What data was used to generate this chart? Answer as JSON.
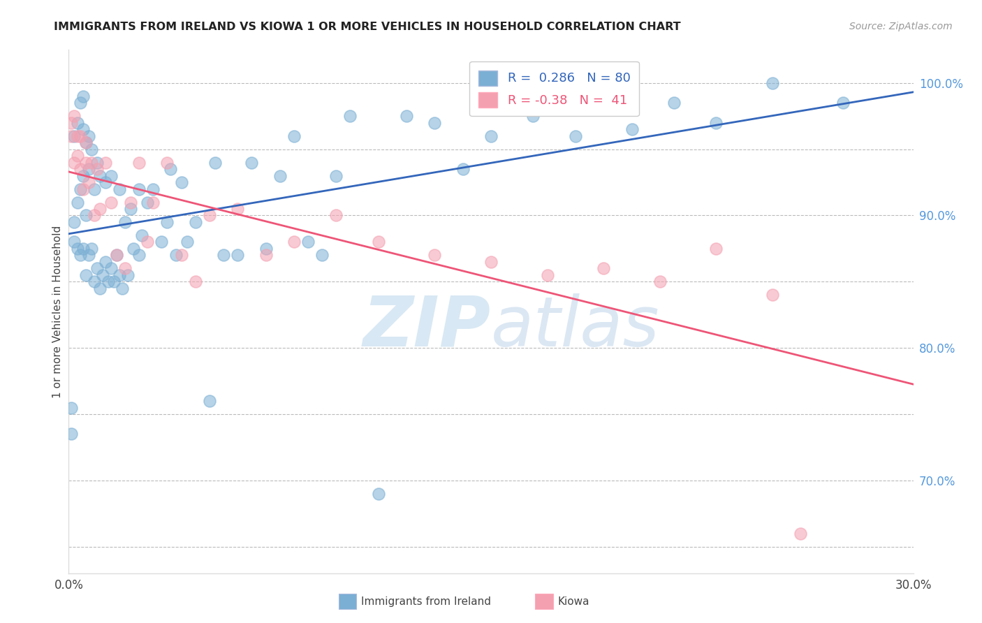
{
  "title": "IMMIGRANTS FROM IRELAND VS KIOWA 1 OR MORE VEHICLES IN HOUSEHOLD CORRELATION CHART",
  "source_text": "Source: ZipAtlas.com",
  "ylabel": "1 or more Vehicles in Household",
  "xmin": 0.0,
  "xmax": 0.3,
  "ymin": 0.63,
  "ymax": 1.025,
  "blue_R": 0.286,
  "blue_N": 80,
  "pink_R": -0.38,
  "pink_N": 41,
  "blue_color": "#7BAFD4",
  "pink_color": "#F4A0B0",
  "blue_line_color": "#3366BB",
  "pink_line_color": "#EE5577",
  "watermark_zip": "ZIP",
  "watermark_atlas": "atlas",
  "xticks": [
    0.0,
    0.05,
    0.1,
    0.15,
    0.2,
    0.25,
    0.3
  ],
  "xtick_labels": [
    "0.0%",
    "",
    "",
    "",
    "",
    "",
    "30.0%"
  ],
  "ytick_positions": [
    0.65,
    0.7,
    0.75,
    0.8,
    0.85,
    0.9,
    0.95,
    1.0
  ],
  "ytick_labels": [
    "",
    "70.0%",
    "",
    "80.0%",
    "",
    "90.0%",
    "",
    "100.0%"
  ],
  "blue_x": [
    0.001,
    0.001,
    0.002,
    0.002,
    0.002,
    0.003,
    0.003,
    0.003,
    0.004,
    0.004,
    0.004,
    0.005,
    0.005,
    0.005,
    0.005,
    0.006,
    0.006,
    0.006,
    0.007,
    0.007,
    0.007,
    0.008,
    0.008,
    0.009,
    0.009,
    0.01,
    0.01,
    0.011,
    0.011,
    0.012,
    0.013,
    0.013,
    0.014,
    0.015,
    0.015,
    0.016,
    0.017,
    0.018,
    0.018,
    0.019,
    0.02,
    0.021,
    0.022,
    0.023,
    0.025,
    0.025,
    0.026,
    0.028,
    0.03,
    0.033,
    0.035,
    0.036,
    0.038,
    0.04,
    0.042,
    0.045,
    0.05,
    0.052,
    0.055,
    0.06,
    0.065,
    0.07,
    0.075,
    0.08,
    0.085,
    0.09,
    0.095,
    0.1,
    0.11,
    0.12,
    0.13,
    0.14,
    0.15,
    0.165,
    0.18,
    0.2,
    0.215,
    0.23,
    0.25,
    0.275
  ],
  "blue_y": [
    0.735,
    0.755,
    0.88,
    0.895,
    0.96,
    0.875,
    0.91,
    0.97,
    0.87,
    0.92,
    0.985,
    0.875,
    0.93,
    0.965,
    0.99,
    0.855,
    0.9,
    0.955,
    0.87,
    0.935,
    0.96,
    0.875,
    0.95,
    0.85,
    0.92,
    0.86,
    0.94,
    0.845,
    0.93,
    0.855,
    0.865,
    0.925,
    0.85,
    0.86,
    0.93,
    0.85,
    0.87,
    0.855,
    0.92,
    0.845,
    0.895,
    0.855,
    0.905,
    0.875,
    0.87,
    0.92,
    0.885,
    0.91,
    0.92,
    0.88,
    0.895,
    0.935,
    0.87,
    0.925,
    0.88,
    0.895,
    0.76,
    0.94,
    0.87,
    0.87,
    0.94,
    0.875,
    0.93,
    0.96,
    0.88,
    0.87,
    0.93,
    0.975,
    0.69,
    0.975,
    0.97,
    0.935,
    0.96,
    0.975,
    0.96,
    0.965,
    0.985,
    0.97,
    1.0,
    0.985
  ],
  "pink_x": [
    0.001,
    0.001,
    0.002,
    0.002,
    0.003,
    0.003,
    0.004,
    0.004,
    0.005,
    0.006,
    0.006,
    0.007,
    0.008,
    0.009,
    0.01,
    0.011,
    0.013,
    0.015,
    0.017,
    0.02,
    0.022,
    0.025,
    0.028,
    0.03,
    0.035,
    0.04,
    0.045,
    0.05,
    0.06,
    0.07,
    0.08,
    0.095,
    0.11,
    0.13,
    0.15,
    0.17,
    0.19,
    0.21,
    0.23,
    0.25,
    0.26
  ],
  "pink_y": [
    0.96,
    0.97,
    0.94,
    0.975,
    0.945,
    0.96,
    0.935,
    0.96,
    0.92,
    0.94,
    0.955,
    0.925,
    0.94,
    0.9,
    0.935,
    0.905,
    0.94,
    0.91,
    0.87,
    0.86,
    0.91,
    0.94,
    0.88,
    0.91,
    0.94,
    0.87,
    0.85,
    0.9,
    0.905,
    0.87,
    0.88,
    0.9,
    0.88,
    0.87,
    0.865,
    0.855,
    0.86,
    0.85,
    0.875,
    0.84,
    0.66
  ]
}
